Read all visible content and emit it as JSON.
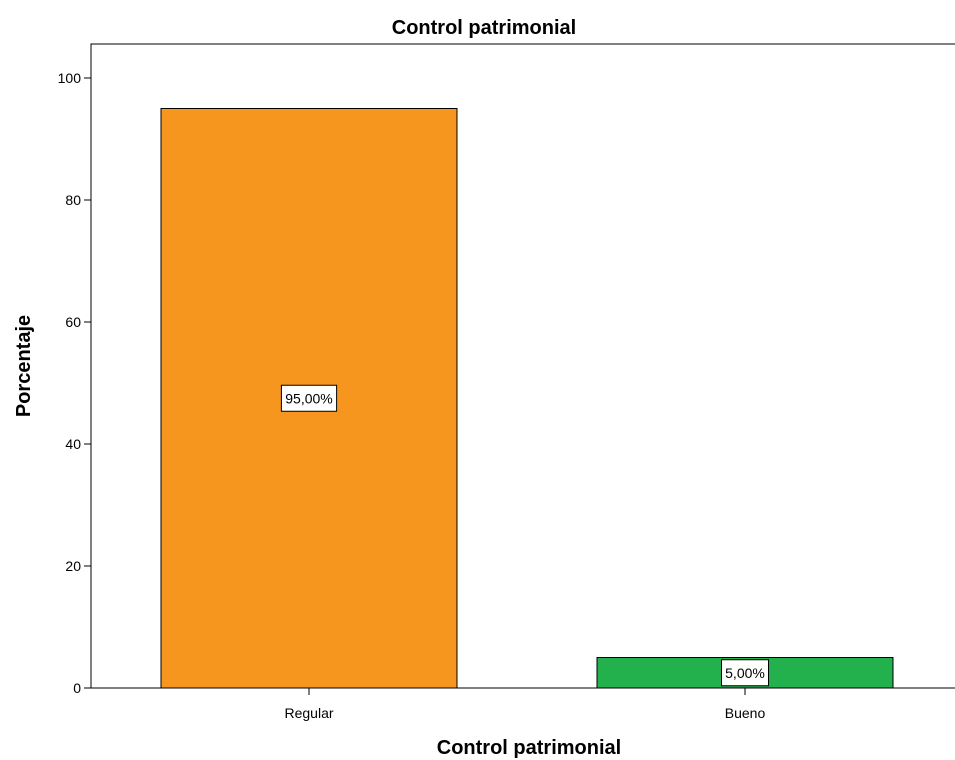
{
  "chart_data": {
    "type": "bar",
    "title": "Control patrimonial",
    "xlabel": "Control patrimonial",
    "ylabel": "Porcentaje",
    "categories": [
      "Regular",
      "Bueno"
    ],
    "values": [
      95,
      5
    ],
    "data_labels": [
      "95,00%",
      "5,00%"
    ],
    "colors": [
      "#f7961e",
      "#22b14c"
    ],
    "ylim": [
      0,
      105
    ],
    "yticks": [
      0,
      20,
      40,
      60,
      80,
      100
    ],
    "grid": false
  }
}
